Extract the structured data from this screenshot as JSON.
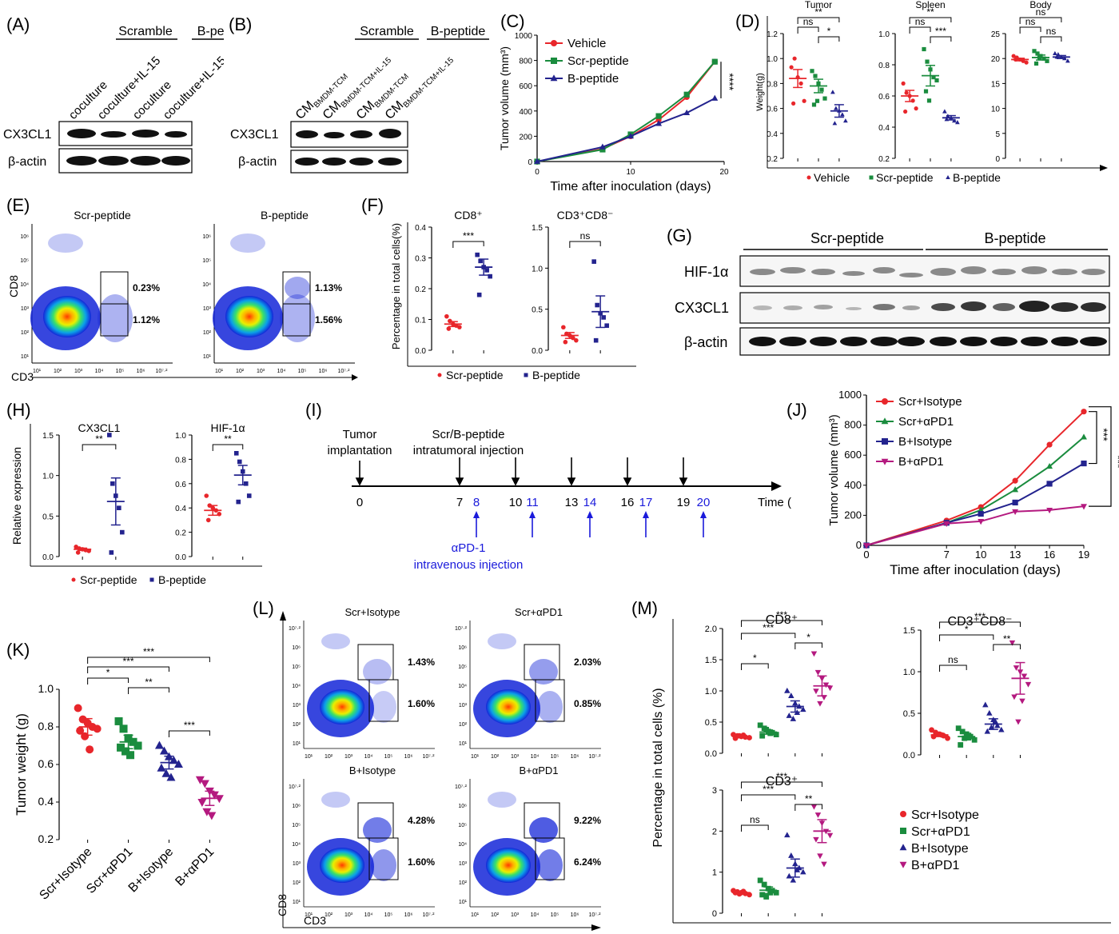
{
  "panels": {
    "A": {
      "label": "(A)",
      "group_left": "Scramble",
      "group_right": "B-peptide",
      "lanes": [
        "coculture",
        "coculture+IL-15",
        "coculture",
        "coculture+IL-15"
      ],
      "rows": [
        "CX3CL1",
        "β-actin"
      ]
    },
    "B": {
      "label": "(B)",
      "group_left": "Scramble",
      "group_right": "B-peptide",
      "lane_prefix": "CM",
      "lanes": [
        "BMDM-TCM",
        "BMDM-TCM+IL-15",
        "BMDM-TCM",
        "BMDM-TCM+IL-15"
      ],
      "rows": [
        "CX3CL1",
        "β-actin"
      ]
    },
    "C": {
      "label": "(C)"
    },
    "D": {
      "label": "(D)"
    },
    "E": {
      "label": "(E)",
      "titles": [
        "Scr-peptide",
        "B-peptide"
      ],
      "xlabel": "CD3",
      "ylabel": "CD8",
      "gates": [
        [
          "0.23%",
          "1.12%"
        ],
        [
          "1.13%",
          "1.56%"
        ]
      ],
      "xticks": [
        "10¹",
        "10²",
        "10³",
        "10⁴",
        "10⁵",
        "10⁶",
        "10⁷·²"
      ],
      "yticks": [
        "10¹",
        "10²",
        "10³",
        "10⁴",
        "10⁵",
        "10⁶"
      ]
    },
    "F": {
      "label": "(F)"
    },
    "G": {
      "label": "(G)",
      "group_left": "Scr-peptide",
      "group_right": "B-peptide",
      "rows": [
        "HIF-1α",
        "CX3CL1",
        "β-actin"
      ]
    },
    "H": {
      "label": "(H)"
    },
    "I": {
      "label": "(I)",
      "top_left": "Tumor",
      "top_left2": "implantation",
      "top_mid": "Scr/B-peptide",
      "top_mid2": "intratumoral injection",
      "days_black": [
        "0",
        "7",
        "10",
        "13",
        "16",
        "19"
      ],
      "days_blue": [
        "8",
        "11",
        "14",
        "17",
        "20"
      ],
      "axis_end": "Time (d)",
      "bottom": "αPD-1",
      "bottom2": "intravenous injection"
    },
    "J": {
      "label": "(J)"
    },
    "K": {
      "label": "(K)"
    },
    "L": {
      "label": "(L)",
      "titles": [
        "Scr+Isotype",
        "Scr+αPD1",
        "B+Isotype",
        "B+αPD1"
      ],
      "gates": [
        [
          "1.43%",
          "1.60%"
        ],
        [
          "2.03%",
          "0.85%"
        ],
        [
          "4.28%",
          "1.60%"
        ],
        [
          "9.22%",
          "6.24%"
        ]
      ],
      "xlabel": "CD3",
      "ylabel": "CD8",
      "xticks": [
        "10¹",
        "10²",
        "10³",
        "10⁴",
        "10⁵",
        "10⁶",
        "10⁷·²"
      ],
      "yticks": [
        "10¹",
        "10²",
        "10³",
        "10⁴",
        "10⁵",
        "10⁶",
        "10⁷·²"
      ]
    },
    "M": {
      "label": "(M)"
    }
  },
  "colors": {
    "red": "#e8262b",
    "green": "#1a8c3e",
    "navy": "#23238e",
    "magenta": "#b4197f",
    "blue_text": "#1a1adb"
  },
  "chart_data": [
    {
      "id": "C",
      "type": "line",
      "xlabel": "Time after inoculation (days)",
      "ylabel": "Tumor volume (mm³)",
      "x": [
        0,
        7,
        10,
        13,
        16,
        19
      ],
      "xlim": [
        0,
        20
      ],
      "ylim": [
        0,
        1000
      ],
      "xticks": [
        0,
        10,
        20
      ],
      "yticks": [
        0,
        200,
        400,
        600,
        800,
        1000
      ],
      "series": [
        {
          "name": "Vehicle",
          "color": "#e8262b",
          "marker": "circle",
          "values": [
            0,
            100,
            200,
            330,
            510,
            790
          ]
        },
        {
          "name": "Scr-peptide",
          "color": "#1a8c3e",
          "marker": "square",
          "values": [
            0,
            95,
            215,
            360,
            530,
            790
          ]
        },
        {
          "name": "B-peptide",
          "color": "#23238e",
          "marker": "triangle",
          "values": [
            0,
            115,
            200,
            300,
            385,
            500
          ]
        }
      ],
      "annotation": "****"
    },
    {
      "id": "D",
      "type": "scatter",
      "ylabel": "Weight(g)",
      "legend": [
        "Vehicle",
        "Scr-peptide",
        "B-peptide"
      ],
      "subplots": [
        {
          "title": "Tumor",
          "ylim": [
            0.2,
            1.2
          ],
          "yticks": [
            "0.2",
            "0.4",
            "0.6",
            "0.8",
            "1.0",
            "1.2"
          ],
          "means": [
            0.84,
            0.78,
            0.58
          ],
          "points": [
            [
              0.93,
              1.0,
              0.85,
              0.8,
              0.66,
              0.64
            ],
            [
              0.9,
              0.86,
              0.8,
              0.75,
              0.68,
              0.63,
              0.66
            ],
            [
              0.73,
              0.6,
              0.58,
              0.55,
              0.5,
              0.48
            ]
          ],
          "sig": [
            [
              "**",
              0,
              2
            ],
            [
              "ns",
              0,
              1
            ],
            [
              "*",
              1,
              2
            ]
          ]
        },
        {
          "title": "Spleen",
          "ylim": [
            0.2,
            1.0
          ],
          "yticks": [
            "0.2",
            "0.4",
            "0.6",
            "0.8",
            "1.0"
          ],
          "means": [
            0.6,
            0.73,
            0.46
          ],
          "points": [
            [
              0.68,
              0.62,
              0.6,
              0.57,
              0.52,
              0.5
            ],
            [
              0.9,
              0.82,
              0.77,
              0.72,
              0.7,
              0.63,
              0.57
            ],
            [
              0.5,
              0.47,
              0.46,
              0.44,
              0.43,
              0.45
            ]
          ],
          "sig": [
            [
              "**",
              0,
              2
            ],
            [
              "ns",
              0,
              1
            ],
            [
              "***",
              1,
              2
            ]
          ]
        },
        {
          "title": "Body",
          "ylim": [
            0,
            25
          ],
          "yticks": [
            "0",
            "5",
            "10",
            "15",
            "20",
            "25"
          ],
          "means": [
            19.8,
            20.2,
            20.3
          ],
          "points": [
            [
              20.5,
              20.2,
              19.8,
              19.5,
              19.2,
              19.8
            ],
            [
              21.5,
              21.0,
              20.5,
              20.0,
              19.5,
              19.0,
              20.2
            ],
            [
              21.0,
              20.8,
              20.3,
              20.0,
              19.5,
              20.3
            ]
          ],
          "sig": [
            [
              "ns",
              0,
              2
            ],
            [
              "ns",
              0,
              1
            ],
            [
              "ns",
              1,
              2
            ]
          ]
        }
      ]
    },
    {
      "id": "F",
      "type": "scatter",
      "ylabel": "Percentage in total cells(%)",
      "legend": [
        "Scr-peptide",
        "B-peptide"
      ],
      "subplots": [
        {
          "title": "CD8⁺",
          "ylim": [
            0,
            0.4
          ],
          "yticks": [
            "0.0",
            "0.1",
            "0.2",
            "0.3",
            "0.4"
          ],
          "means": [
            0.085,
            0.27
          ],
          "points": [
            [
              0.11,
              0.095,
              0.085,
              0.08,
              0.075,
              0.07
            ],
            [
              0.31,
              0.29,
              0.27,
              0.26,
              0.24,
              0.18
            ]
          ],
          "sig": [
            [
              "***",
              0,
              1
            ]
          ]
        },
        {
          "title": "CD3⁺CD8⁻",
          "ylim": [
            0,
            1.5
          ],
          "yticks": [
            "0.0",
            "0.5",
            "1.0",
            "1.5"
          ],
          "means": [
            0.18,
            0.47
          ],
          "points": [
            [
              0.28,
              0.2,
              0.18,
              0.15,
              0.12,
              0.1
            ],
            [
              1.08,
              0.55,
              0.45,
              0.4,
              0.3,
              0.12
            ]
          ],
          "sig": [
            [
              "ns",
              0,
              1
            ]
          ]
        }
      ]
    },
    {
      "id": "H",
      "type": "scatter",
      "ylabel": "Relative expression",
      "legend": [
        "Scr-peptide",
        "B-peptide"
      ],
      "subplots": [
        {
          "title": "CX3CL1",
          "ylim": [
            0,
            1.5
          ],
          "yticks": [
            "0.0",
            "0.5",
            "1.0",
            "1.5"
          ],
          "means": [
            0.09,
            0.68
          ],
          "points": [
            [
              0.12,
              0.1,
              0.09,
              0.08,
              0.07,
              0.05
            ],
            [
              1.5,
              0.9,
              0.75,
              0.6,
              0.3,
              0.05
            ]
          ],
          "sig": [
            [
              "**",
              0,
              1
            ]
          ]
        },
        {
          "title": "HIF-1α",
          "ylim": [
            0,
            1.0
          ],
          "yticks": [
            "0.0",
            "0.2",
            "0.4",
            "0.6",
            "0.8",
            "1.0"
          ],
          "means": [
            0.38,
            0.67
          ],
          "points": [
            [
              0.5,
              0.42,
              0.4,
              0.38,
              0.35,
              0.3
            ],
            [
              0.85,
              0.78,
              0.7,
              0.6,
              0.5,
              0.45
            ]
          ],
          "sig": [
            [
              "**",
              0,
              1
            ]
          ]
        }
      ]
    },
    {
      "id": "J",
      "type": "line",
      "xlabel": "Time after inoculation (days)",
      "ylabel": "Tumor volume (mm³)",
      "x": [
        0,
        7,
        10,
        13,
        16,
        19
      ],
      "ylim": [
        0,
        1000
      ],
      "xticks": [
        0,
        7,
        10,
        13,
        16,
        19
      ],
      "yticks": [
        0,
        200,
        400,
        600,
        800,
        1000
      ],
      "series": [
        {
          "name": "Scr+Isotype",
          "color": "#e8262b",
          "marker": "circle",
          "values": [
            0,
            165,
            255,
            430,
            670,
            890
          ]
        },
        {
          "name": "Scr+αPD1",
          "color": "#1a8c3e",
          "marker": "triangle",
          "values": [
            0,
            150,
            235,
            370,
            525,
            720
          ]
        },
        {
          "name": "B+Isotype",
          "color": "#23238e",
          "marker": "square",
          "values": [
            0,
            150,
            210,
            285,
            410,
            545
          ]
        },
        {
          "name": "B+αPD1",
          "color": "#b4197f",
          "marker": "triangle-down",
          "values": [
            0,
            145,
            160,
            225,
            235,
            260
          ]
        }
      ],
      "annotations": [
        "***",
        "***"
      ]
    },
    {
      "id": "K",
      "type": "scatter",
      "ylabel": "Tumor weight (g)",
      "categories": [
        "Scr+Isotype",
        "Scr+αPD1",
        "B+Isotype",
        "B+αPD1"
      ],
      "ylim": [
        0.2,
        1.0
      ],
      "yticks": [
        "0.2",
        "0.4",
        "0.6",
        "0.8",
        "1.0"
      ],
      "means": [
        0.8,
        0.72,
        0.61,
        0.42
      ],
      "points": [
        [
          0.9,
          0.84,
          0.82,
          0.8,
          0.79,
          0.78,
          0.75,
          0.68
        ],
        [
          0.83,
          0.79,
          0.74,
          0.72,
          0.7,
          0.69,
          0.67,
          0.65
        ],
        [
          0.7,
          0.67,
          0.64,
          0.62,
          0.6,
          0.58,
          0.55,
          0.53
        ],
        [
          0.52,
          0.5,
          0.46,
          0.44,
          0.42,
          0.4,
          0.35,
          0.33
        ]
      ],
      "sig": [
        [
          "***",
          0,
          3
        ],
        [
          "***",
          0,
          2
        ],
        [
          "*",
          0,
          1
        ],
        [
          "**",
          1,
          2
        ],
        [
          "***",
          2,
          3
        ]
      ]
    },
    {
      "id": "M",
      "type": "scatter",
      "ylabel": "Percentage in total cells (%)",
      "legend": [
        "Scr+Isotype",
        "Scr+αPD1",
        "B+Isotype",
        "B+αPD1"
      ],
      "subplots": [
        {
          "title": "CD8⁺",
          "ylim": [
            0,
            2.0
          ],
          "yticks": [
            "0.0",
            "0.5",
            "1.0",
            "1.5",
            "2.0"
          ],
          "means": [
            0.27,
            0.34,
            0.75,
            1.08
          ],
          "points": [
            [
              0.3,
              0.28,
              0.27,
              0.26,
              0.25,
              0.24,
              0.28,
              0.29
            ],
            [
              0.45,
              0.4,
              0.35,
              0.33,
              0.3,
              0.28,
              0.38,
              0.32
            ],
            [
              1.0,
              0.92,
              0.8,
              0.75,
              0.7,
              0.6,
              0.55,
              0.65
            ],
            [
              1.6,
              1.3,
              1.2,
              1.1,
              1.05,
              1.0,
              0.8,
              0.9
            ]
          ],
          "sig": [
            [
              "***",
              0,
              3
            ],
            [
              "***",
              0,
              2
            ],
            [
              "*",
              0,
              1
            ],
            [
              "*",
              2,
              3
            ]
          ]
        },
        {
          "title": "CD3⁺CD8⁻",
          "ylim": [
            0,
            1.5
          ],
          "yticks": [
            "0.0",
            "0.5",
            "1.0",
            "1.5"
          ],
          "means": [
            0.24,
            0.22,
            0.37,
            0.92
          ],
          "points": [
            [
              0.3,
              0.27,
              0.25,
              0.23,
              0.2,
              0.22,
              0.25,
              0.24
            ],
            [
              0.32,
              0.28,
              0.25,
              0.22,
              0.18,
              0.12,
              0.2,
              0.22
            ],
            [
              0.6,
              0.5,
              0.42,
              0.35,
              0.3,
              0.28,
              0.33,
              0.4
            ],
            [
              1.35,
              1.05,
              1.0,
              0.95,
              0.85,
              0.7,
              0.4,
              0.65
            ]
          ],
          "sig": [
            [
              "***",
              0,
              3
            ],
            [
              "*",
              0,
              2
            ],
            [
              "ns",
              0,
              1
            ],
            [
              "**",
              2,
              3
            ]
          ]
        },
        {
          "title": "CD3⁺",
          "ylim": [
            0,
            3
          ],
          "yticks": [
            "0",
            "1",
            "2",
            "3"
          ],
          "means": [
            0.5,
            0.56,
            1.1,
            2.0
          ],
          "points": [
            [
              0.55,
              0.52,
              0.5,
              0.48,
              0.45,
              0.5,
              0.47,
              0.53
            ],
            [
              0.8,
              0.7,
              0.6,
              0.55,
              0.5,
              0.45,
              0.4,
              0.5
            ],
            [
              1.9,
              1.4,
              1.2,
              1.1,
              1.0,
              0.9,
              0.8,
              1.05
            ],
            [
              2.6,
              2.4,
              2.2,
              2.0,
              1.9,
              1.8,
              1.4,
              1.2
            ]
          ],
          "sig": [
            [
              "***",
              0,
              3
            ],
            [
              "***",
              0,
              2
            ],
            [
              "ns",
              0,
              1
            ],
            [
              "**",
              2,
              3
            ]
          ]
        }
      ]
    }
  ]
}
